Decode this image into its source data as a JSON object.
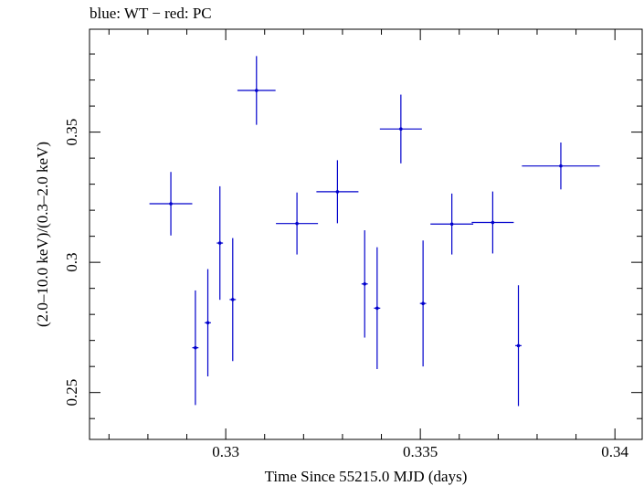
{
  "chart_data": {
    "type": "scatter",
    "title": "blue: WT − red: PC",
    "xlabel": "Time Since 55215.0 MJD (days)",
    "ylabel": "(2.0–10.0 keV)/(0.3–2.0 keV)",
    "xlim": [
      0.3265,
      0.3407
    ],
    "ylim": [
      0.232,
      0.3895
    ],
    "x_ticks": [
      0.33,
      0.335,
      0.34
    ],
    "x_tick_labels": [
      "0.33",
      "0.335",
      "0.34"
    ],
    "y_ticks": [
      0.25,
      0.3,
      0.35
    ],
    "y_tick_labels": [
      "0.25",
      "0.3",
      "0.35"
    ],
    "grid": false,
    "series_color": "#0000cc",
    "series": [
      {
        "points": [
          {
            "x": 0.32859,
            "y": 0.3225,
            "xerr": 0.00055,
            "yerr": 0.0122
          },
          {
            "x": 0.32922,
            "y": 0.2672,
            "xerr": 8e-05,
            "yerr": 0.022
          },
          {
            "x": 0.32954,
            "y": 0.2768,
            "xerr": 8e-05,
            "yerr": 0.0206
          },
          {
            "x": 0.32985,
            "y": 0.3074,
            "xerr": 8e-05,
            "yerr": 0.0218
          },
          {
            "x": 0.33018,
            "y": 0.2857,
            "xerr": 8e-05,
            "yerr": 0.0236
          },
          {
            "x": 0.33079,
            "y": 0.366,
            "xerr": 0.00049,
            "yerr": 0.0132
          },
          {
            "x": 0.33183,
            "y": 0.3149,
            "xerr": 0.00054,
            "yerr": 0.0119
          },
          {
            "x": 0.33287,
            "y": 0.3271,
            "xerr": 0.00054,
            "yerr": 0.0121
          },
          {
            "x": 0.33357,
            "y": 0.2917,
            "xerr": 8e-05,
            "yerr": 0.0206
          },
          {
            "x": 0.33389,
            "y": 0.2824,
            "xerr": 8e-05,
            "yerr": 0.0234
          },
          {
            "x": 0.3345,
            "y": 0.3512,
            "xerr": 0.00054,
            "yerr": 0.0132
          },
          {
            "x": 0.33507,
            "y": 0.2842,
            "xerr": 8e-05,
            "yerr": 0.0242
          },
          {
            "x": 0.33581,
            "y": 0.3147,
            "xerr": 0.00055,
            "yerr": 0.0117
          },
          {
            "x": 0.33686,
            "y": 0.3153,
            "xerr": 0.00054,
            "yerr": 0.0119
          },
          {
            "x": 0.33752,
            "y": 0.268,
            "xerr": 8e-05,
            "yerr": 0.0232
          },
          {
            "x": 0.33861,
            "y": 0.337,
            "xerr": 0.001,
            "yerr": 0.009
          }
        ]
      }
    ]
  }
}
